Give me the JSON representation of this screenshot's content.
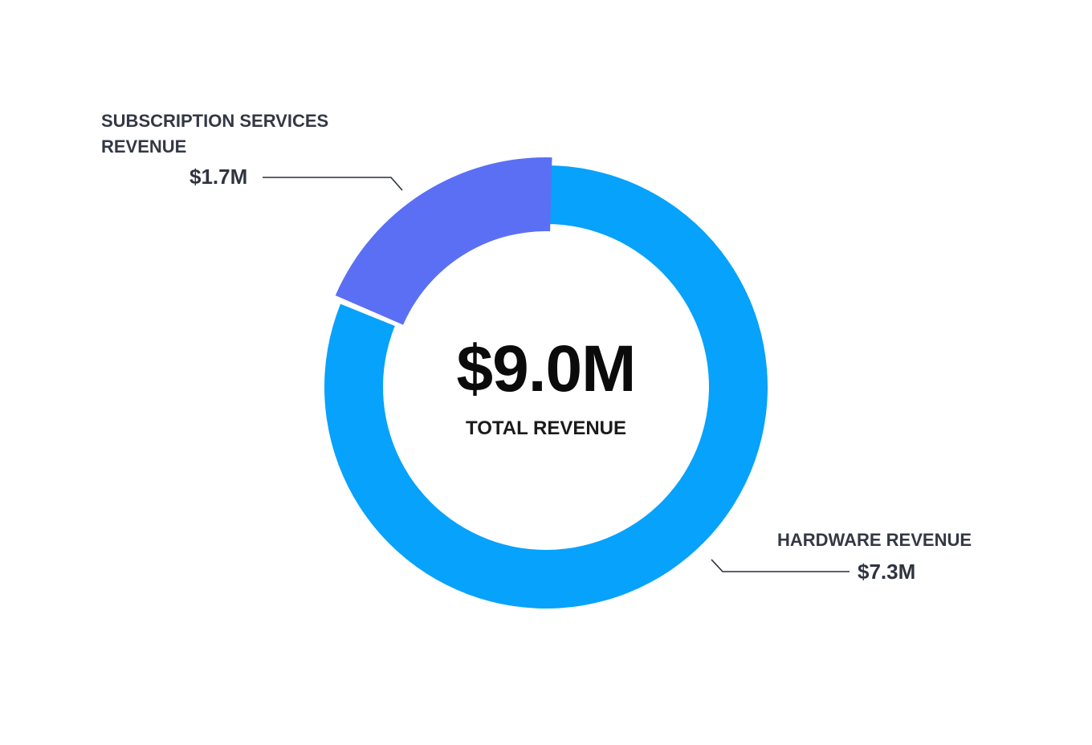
{
  "chart_data": {
    "type": "pie",
    "style": "donut",
    "center": {
      "value": "$9.0M",
      "label": "TOTAL REVENUE"
    },
    "slices": [
      {
        "name": "SUBSCRIPTION SERVICES REVENUE",
        "value": 1.7,
        "value_label": "$1.7M",
        "color": "#5b6ff5"
      },
      {
        "name": "HARDWARE REVENUE",
        "value": 7.3,
        "value_label": "$7.3M",
        "color": "#06a2fb"
      }
    ],
    "leader_line_color": "#2a2f3a",
    "legend": "none"
  }
}
